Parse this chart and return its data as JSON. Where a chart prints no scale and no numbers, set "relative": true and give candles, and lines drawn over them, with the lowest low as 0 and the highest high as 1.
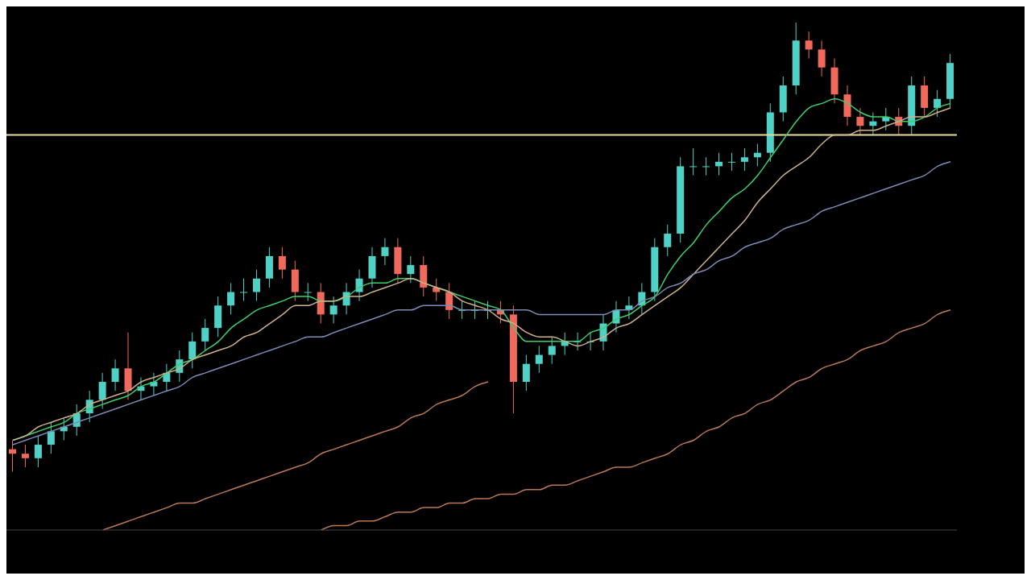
{
  "chart_data": {
    "type": "candlestick",
    "relative": true,
    "categories": [
      null,
      null,
      null,
      null,
      null,
      null,
      null,
      null,
      null,
      null,
      null,
      null,
      null,
      null,
      null,
      null,
      null,
      null,
      null,
      null,
      null,
      null,
      null,
      null,
      null,
      null,
      null,
      null,
      null,
      null,
      null,
      null,
      null,
      null,
      null,
      null,
      null,
      null,
      null,
      null,
      null,
      null,
      null,
      null,
      null,
      null,
      null,
      null,
      null,
      null,
      null,
      null,
      null,
      null,
      null,
      null,
      null,
      null,
      null,
      null,
      null,
      null,
      null,
      null,
      null,
      null,
      null,
      null,
      null,
      null,
      null,
      null,
      null,
      null
    ],
    "ohlc": [
      [
        0.05,
        0.07,
        0.0,
        0.04
      ],
      [
        0.04,
        0.06,
        0.01,
        0.03
      ],
      [
        0.03,
        0.08,
        0.01,
        0.06
      ],
      [
        0.06,
        0.11,
        0.04,
        0.09
      ],
      [
        0.09,
        0.12,
        0.07,
        0.1
      ],
      [
        0.1,
        0.15,
        0.08,
        0.13
      ],
      [
        0.13,
        0.18,
        0.11,
        0.16
      ],
      [
        0.16,
        0.22,
        0.14,
        0.2
      ],
      [
        0.2,
        0.25,
        0.18,
        0.23
      ],
      [
        0.23,
        0.31,
        0.16,
        0.18
      ],
      [
        0.18,
        0.21,
        0.16,
        0.19
      ],
      [
        0.19,
        0.22,
        0.17,
        0.2
      ],
      [
        0.2,
        0.24,
        0.18,
        0.22
      ],
      [
        0.22,
        0.27,
        0.2,
        0.25
      ],
      [
        0.25,
        0.31,
        0.23,
        0.29
      ],
      [
        0.29,
        0.34,
        0.27,
        0.32
      ],
      [
        0.32,
        0.39,
        0.3,
        0.37
      ],
      [
        0.37,
        0.42,
        0.35,
        0.4
      ],
      [
        0.4,
        0.43,
        0.38,
        0.4
      ],
      [
        0.4,
        0.45,
        0.38,
        0.43
      ],
      [
        0.43,
        0.5,
        0.41,
        0.48
      ],
      [
        0.48,
        0.5,
        0.43,
        0.45
      ],
      [
        0.45,
        0.47,
        0.38,
        0.4
      ],
      [
        0.4,
        0.42,
        0.38,
        0.4
      ],
      [
        0.4,
        0.42,
        0.33,
        0.35
      ],
      [
        0.35,
        0.39,
        0.33,
        0.37
      ],
      [
        0.37,
        0.42,
        0.35,
        0.4
      ],
      [
        0.4,
        0.45,
        0.38,
        0.43
      ],
      [
        0.43,
        0.5,
        0.41,
        0.48
      ],
      [
        0.48,
        0.52,
        0.46,
        0.5
      ],
      [
        0.5,
        0.52,
        0.42,
        0.44
      ],
      [
        0.44,
        0.48,
        0.42,
        0.46
      ],
      [
        0.46,
        0.48,
        0.39,
        0.41
      ],
      [
        0.41,
        0.43,
        0.38,
        0.4
      ],
      [
        0.4,
        0.42,
        0.34,
        0.36
      ],
      [
        0.36,
        0.38,
        0.34,
        0.36
      ],
      [
        0.36,
        0.38,
        0.34,
        0.36
      ],
      [
        0.36,
        0.38,
        0.34,
        0.36
      ],
      [
        0.36,
        0.38,
        0.33,
        0.35
      ],
      [
        0.35,
        0.37,
        0.13,
        0.2
      ],
      [
        0.2,
        0.26,
        0.18,
        0.24
      ],
      [
        0.24,
        0.28,
        0.22,
        0.26
      ],
      [
        0.26,
        0.3,
        0.24,
        0.28
      ],
      [
        0.28,
        0.31,
        0.26,
        0.29
      ],
      [
        0.29,
        0.31,
        0.27,
        0.29
      ],
      [
        0.29,
        0.31,
        0.27,
        0.29
      ],
      [
        0.29,
        0.35,
        0.27,
        0.33
      ],
      [
        0.33,
        0.38,
        0.31,
        0.36
      ],
      [
        0.36,
        0.39,
        0.34,
        0.37
      ],
      [
        0.37,
        0.42,
        0.35,
        0.4
      ],
      [
        0.4,
        0.52,
        0.38,
        0.5
      ],
      [
        0.5,
        0.55,
        0.48,
        0.53
      ],
      [
        0.53,
        0.7,
        0.51,
        0.68
      ],
      [
        0.68,
        0.72,
        0.66,
        0.68
      ],
      [
        0.68,
        0.7,
        0.66,
        0.68
      ],
      [
        0.68,
        0.71,
        0.66,
        0.69
      ],
      [
        0.69,
        0.71,
        0.67,
        0.69
      ],
      [
        0.69,
        0.72,
        0.67,
        0.7
      ],
      [
        0.7,
        0.73,
        0.68,
        0.71
      ],
      [
        0.71,
        0.82,
        0.69,
        0.8
      ],
      [
        0.8,
        0.88,
        0.78,
        0.86
      ],
      [
        0.86,
        1.0,
        0.84,
        0.96
      ],
      [
        0.96,
        0.98,
        0.92,
        0.94
      ],
      [
        0.94,
        0.96,
        0.88,
        0.9
      ],
      [
        0.9,
        0.92,
        0.82,
        0.84
      ],
      [
        0.84,
        0.86,
        0.77,
        0.79
      ],
      [
        0.79,
        0.81,
        0.75,
        0.77
      ],
      [
        0.77,
        0.8,
        0.75,
        0.78
      ],
      [
        0.78,
        0.81,
        0.76,
        0.79
      ],
      [
        0.79,
        0.81,
        0.75,
        0.77
      ],
      [
        0.77,
        0.88,
        0.75,
        0.86
      ],
      [
        0.86,
        0.88,
        0.79,
        0.81
      ],
      [
        0.81,
        0.85,
        0.79,
        0.83
      ],
      [
        0.83,
        0.93,
        0.81,
        0.91
      ]
    ],
    "colors": [
      "#f0695a",
      "#f0695a",
      "#4fd1c5",
      "#4fd1c5",
      "#4fd1c5",
      "#4fd1c5",
      "#4fd1c5",
      "#4fd1c5",
      "#4fd1c5",
      "#f0695a",
      "#4fd1c5",
      "#4fd1c5",
      "#4fd1c5",
      "#4fd1c5",
      "#4fd1c5",
      "#4fd1c5",
      "#4fd1c5",
      "#4fd1c5",
      "#4fd1c5",
      "#4fd1c5",
      "#4fd1c5",
      "#f0695a",
      "#f0695a",
      "#4fd1c5",
      "#f0695a",
      "#4fd1c5",
      "#4fd1c5",
      "#4fd1c5",
      "#4fd1c5",
      "#4fd1c5",
      "#f0695a",
      "#4fd1c5",
      "#f0695a",
      "#f0695a",
      "#f0695a",
      "#4fd1c5",
      "#4fd1c5",
      "#4fd1c5",
      "#f0695a",
      "#f0695a",
      "#4fd1c5",
      "#4fd1c5",
      "#4fd1c5",
      "#4fd1c5",
      "#4fd1c5",
      "#4fd1c5",
      "#4fd1c5",
      "#4fd1c5",
      "#4fd1c5",
      "#4fd1c5",
      "#4fd1c5",
      "#4fd1c5",
      "#4fd1c5",
      "#4fd1c5",
      "#4fd1c5",
      "#4fd1c5",
      "#4fd1c5",
      "#4fd1c5",
      "#4fd1c5",
      "#4fd1c5",
      "#4fd1c5",
      "#4fd1c5",
      "#f0695a",
      "#f0695a",
      "#f0695a",
      "#f0695a",
      "#f0695a",
      "#4fd1c5",
      "#4fd1c5",
      "#f0695a",
      "#4fd1c5",
      "#f0695a",
      "#4fd1c5",
      "#4fd1c5"
    ],
    "ref_lines": [
      {
        "axis": "y",
        "value": 0.75,
        "color": "#e6dc9a"
      }
    ],
    "series": [
      {
        "type": "line",
        "color": "#3fcf6a",
        "values": [
          0.07,
          0.08,
          0.09,
          0.1,
          0.11,
          0.13,
          0.14,
          0.15,
          0.16,
          0.17,
          0.19,
          0.2,
          0.22,
          0.24,
          0.25,
          0.27,
          0.29,
          0.32,
          0.34,
          0.36,
          0.37,
          0.38,
          0.39,
          0.39,
          0.38,
          0.38,
          0.39,
          0.41,
          0.42,
          0.42,
          0.43,
          0.43,
          0.42,
          0.41,
          0.4,
          0.39,
          0.38,
          0.37,
          0.36,
          0.32,
          0.29,
          0.29,
          0.29,
          0.29,
          0.29,
          0.31,
          0.32,
          0.34,
          0.35,
          0.37,
          0.39,
          0.44,
          0.48,
          0.51,
          0.55,
          0.58,
          0.61,
          0.63,
          0.66,
          0.7,
          0.74,
          0.78,
          0.81,
          0.82,
          0.83,
          0.82,
          0.8,
          0.79,
          0.79,
          0.78,
          0.78,
          0.79,
          0.81,
          0.82
        ]
      },
      {
        "type": "line",
        "color": "#cdb28c",
        "values": [
          0.07,
          0.08,
          0.1,
          0.11,
          0.12,
          0.13,
          0.15,
          0.16,
          0.17,
          0.18,
          0.2,
          0.21,
          0.22,
          0.23,
          0.25,
          0.26,
          0.27,
          0.28,
          0.3,
          0.31,
          0.33,
          0.35,
          0.37,
          0.37,
          0.38,
          0.38,
          0.39,
          0.39,
          0.4,
          0.41,
          0.42,
          0.43,
          0.42,
          0.41,
          0.4,
          0.38,
          0.37,
          0.36,
          0.34,
          0.33,
          0.31,
          0.3,
          0.3,
          0.29,
          0.28,
          0.29,
          0.3,
          0.32,
          0.33,
          0.35,
          0.37,
          0.39,
          0.41,
          0.44,
          0.47,
          0.5,
          0.53,
          0.56,
          0.6,
          0.63,
          0.66,
          0.68,
          0.7,
          0.73,
          0.75,
          0.75,
          0.76,
          0.76,
          0.77,
          0.78,
          0.79,
          0.79,
          0.8,
          0.81
        ]
      },
      {
        "type": "line",
        "color": "#7c8db5",
        "values": [
          0.06,
          0.07,
          0.08,
          0.09,
          0.1,
          0.11,
          0.12,
          0.13,
          0.14,
          0.15,
          0.16,
          0.17,
          0.18,
          0.19,
          0.21,
          0.22,
          0.23,
          0.24,
          0.25,
          0.26,
          0.27,
          0.28,
          0.29,
          0.3,
          0.3,
          0.31,
          0.32,
          0.33,
          0.34,
          0.35,
          0.36,
          0.36,
          0.37,
          0.37,
          0.37,
          0.36,
          0.36,
          0.36,
          0.36,
          0.36,
          0.36,
          0.35,
          0.35,
          0.35,
          0.35,
          0.35,
          0.35,
          0.36,
          0.36,
          0.38,
          0.39,
          0.41,
          0.42,
          0.44,
          0.45,
          0.47,
          0.48,
          0.5,
          0.51,
          0.52,
          0.54,
          0.55,
          0.56,
          0.58,
          0.59,
          0.6,
          0.61,
          0.62,
          0.63,
          0.64,
          0.65,
          0.66,
          0.68,
          0.69
        ]
      },
      {
        "type": "line",
        "color": "#b97a58",
        "values": [
          null,
          null,
          null,
          null,
          null,
          null,
          null,
          -0.13,
          -0.12,
          -0.11,
          -0.1,
          -0.09,
          -0.08,
          -0.07,
          -0.07,
          -0.06,
          -0.05,
          -0.04,
          -0.03,
          -0.02,
          -0.01,
          0.0,
          0.01,
          0.02,
          0.04,
          0.05,
          0.06,
          0.07,
          0.08,
          0.09,
          0.1,
          0.12,
          0.13,
          0.15,
          0.16,
          0.17,
          0.19,
          0.2,
          null,
          null,
          null,
          null,
          null,
          null,
          null,
          null,
          null,
          null,
          null,
          null,
          null,
          null,
          null,
          null,
          null,
          null,
          null,
          null,
          null,
          null,
          null,
          null,
          null,
          null,
          null,
          null,
          null,
          null,
          null,
          null,
          null,
          null,
          null,
          null
        ]
      },
      {
        "type": "line",
        "color": "#b97a58",
        "values": [
          null,
          null,
          null,
          null,
          null,
          null,
          null,
          null,
          null,
          null,
          null,
          null,
          null,
          null,
          null,
          null,
          null,
          null,
          null,
          null,
          null,
          null,
          null,
          null,
          -0.13,
          -0.12,
          -0.12,
          -0.11,
          -0.11,
          -0.1,
          -0.09,
          -0.09,
          -0.08,
          -0.08,
          -0.07,
          -0.07,
          -0.06,
          -0.06,
          -0.05,
          -0.05,
          -0.04,
          -0.04,
          -0.03,
          -0.03,
          -0.02,
          -0.01,
          0.0,
          0.01,
          0.01,
          0.02,
          0.03,
          0.04,
          0.06,
          0.07,
          0.09,
          0.1,
          0.12,
          0.13,
          0.15,
          0.16,
          0.18,
          0.2,
          0.21,
          0.23,
          0.24,
          0.25,
          0.27,
          0.28,
          0.29,
          0.31,
          0.32,
          0.33,
          0.35,
          0.36
        ]
      }
    ]
  }
}
